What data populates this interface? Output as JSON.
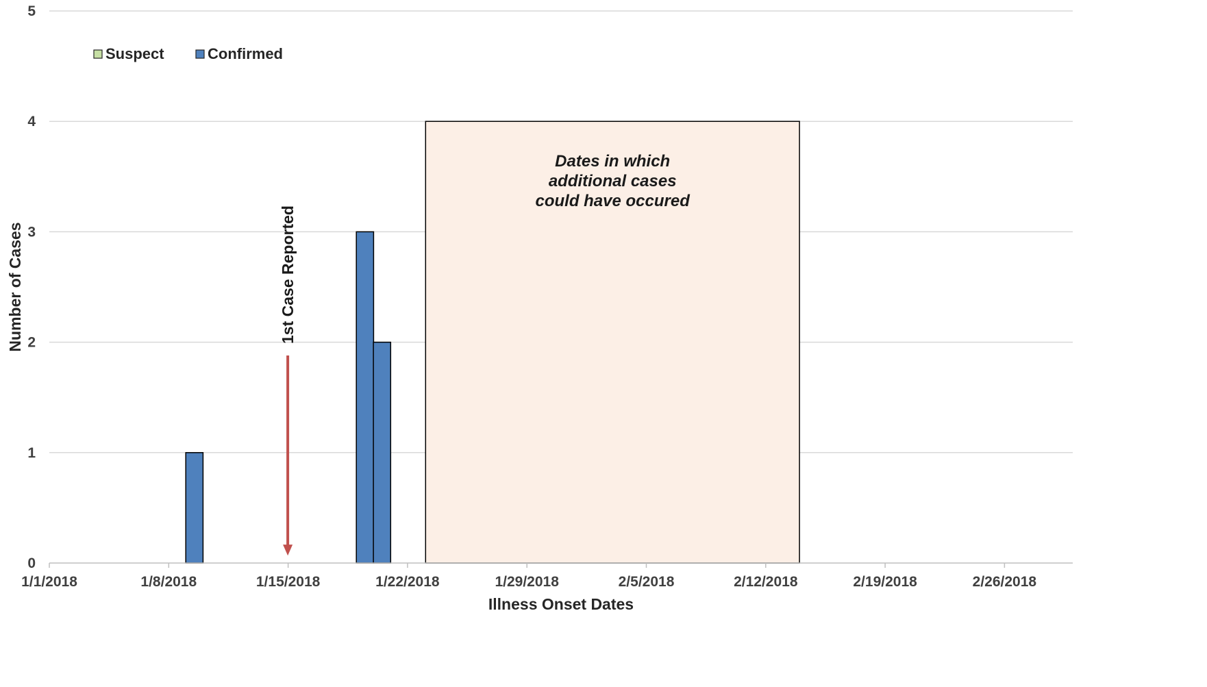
{
  "chart_data": {
    "type": "bar",
    "xlabel": "Illness Onset Dates",
    "ylabel": "Number of Cases",
    "xlim": [
      "1/1/2018",
      "3/2/2018"
    ],
    "ylim": [
      0,
      5
    ],
    "grid": true,
    "x_ticks": [
      "1/1/2018",
      "1/8/2018",
      "1/15/2018",
      "1/22/2018",
      "1/29/2018",
      "2/5/2018",
      "2/12/2018",
      "2/19/2018",
      "2/26/2018"
    ],
    "y_ticks": [
      "0",
      "1",
      "2",
      "3",
      "4",
      "5"
    ],
    "legend": {
      "placement": "top-left"
    },
    "series": [
      {
        "name": "Suspect",
        "color": "#c6dfa4",
        "points": []
      },
      {
        "name": "Confirmed",
        "color": "#4f81bd",
        "points": [
          {
            "x": "1/9/2018",
            "y": 1
          },
          {
            "x": "1/19/2018",
            "y": 3
          },
          {
            "x": "1/20/2018",
            "y": 2
          }
        ]
      }
    ],
    "annotations": {
      "shaded_region": {
        "x_start": "1/23/2018",
        "x_end": "2/14/2018",
        "y_top": 4,
        "color": "#fcefe6",
        "lines": [
          "Dates in which",
          "additional cases",
          "could have occured"
        ]
      },
      "arrow": {
        "x": "1/15/2018",
        "label": "1st Case Reported",
        "color": "#c0504d",
        "y_start": 1.88,
        "y_end": 0.08
      }
    }
  }
}
